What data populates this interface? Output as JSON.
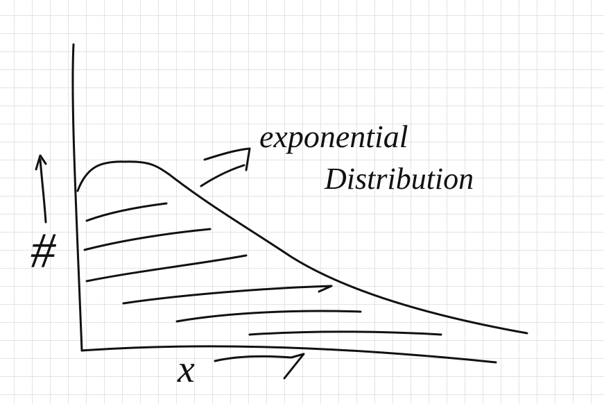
{
  "title": {
    "line1": "exponential",
    "line2": "Distribution"
  },
  "axes": {
    "y_label": "#",
    "x_label": "x"
  }
}
